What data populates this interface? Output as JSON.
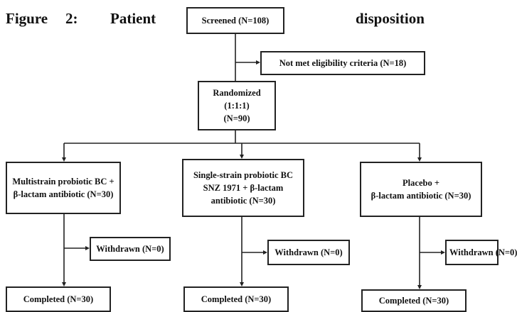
{
  "caption": {
    "figure": "Figure",
    "number": "2:",
    "word1": "Patient",
    "word2": "disposition"
  },
  "screened": "Screened (N=108)",
  "excluded": "Not met eligibility criteria (N=18)",
  "randomized": {
    "line1": "Randomized (1:1:1)",
    "line2": "(N=90)"
  },
  "arms": [
    {
      "lines": [
        "Multistrain probiotic BC +",
        "β-lactam antibiotic (N=30)"
      ],
      "withdrawn": "Withdrawn (N=0)",
      "completed": "Completed (N=30)"
    },
    {
      "lines": [
        "Single-strain probiotic BC",
        "SNZ 1971 + β-lactam",
        "antibiotic (N=30)"
      ],
      "withdrawn": "Withdrawn (N=0)",
      "completed": "Completed (N=30)"
    },
    {
      "lines": [
        "Placebo +",
        "β-lactam antibiotic (N=30)"
      ],
      "withdrawn": "Withdrawn (N=0)",
      "completed": "Completed (N=30)"
    }
  ]
}
